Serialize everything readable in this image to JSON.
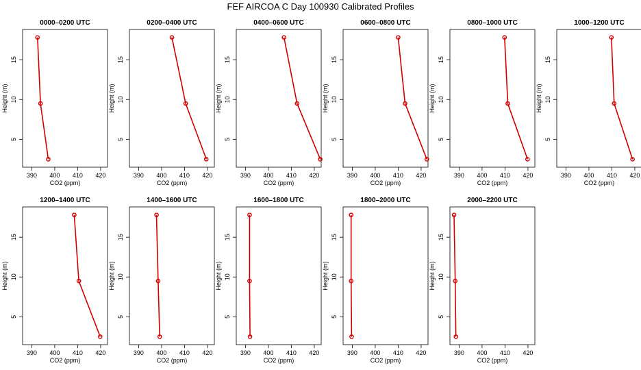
{
  "figure": {
    "title": "FEF AIRCOA C  Day 100930  Calibrated Profiles"
  },
  "chart_data": [
    {
      "type": "line",
      "title": "0000–0200 UTC",
      "xlabel": "CO2 (ppm)",
      "ylabel": "Height (m)",
      "xlim": [
        386,
        423
      ],
      "ylim": [
        1.5,
        18.8
      ],
      "xticks": [
        390,
        400,
        410,
        420
      ],
      "yticks": [
        5,
        10,
        15
      ],
      "series": [
        {
          "x": [
            392.5,
            393.8,
            397.2
          ],
          "y": [
            17.8,
            9.5,
            2.5
          ]
        }
      ]
    },
    {
      "type": "line",
      "title": "0200–0400 UTC",
      "xlabel": "CO2 (ppm)",
      "ylabel": "Height (m)",
      "xlim": [
        386,
        423
      ],
      "ylim": [
        1.5,
        18.8
      ],
      "xticks": [
        390,
        400,
        410,
        420
      ],
      "yticks": [
        5,
        10,
        15
      ],
      "series": [
        {
          "x": [
            404.5,
            410.5,
            419.5
          ],
          "y": [
            17.8,
            9.5,
            2.5
          ]
        }
      ]
    },
    {
      "type": "line",
      "title": "0400–0600 UTC",
      "xlabel": "CO2 (ppm)",
      "ylabel": "Height (m)",
      "xlim": [
        386,
        423
      ],
      "ylim": [
        1.5,
        18.8
      ],
      "xticks": [
        390,
        400,
        410,
        420
      ],
      "yticks": [
        5,
        10,
        15
      ],
      "series": [
        {
          "x": [
            406.8,
            412.5,
            422.6
          ],
          "y": [
            17.8,
            9.5,
            2.5
          ]
        }
      ]
    },
    {
      "type": "line",
      "title": "0600–0800 UTC",
      "xlabel": "CO2 (ppm)",
      "ylabel": "Height (m)",
      "xlim": [
        386,
        423
      ],
      "ylim": [
        1.5,
        18.8
      ],
      "xticks": [
        390,
        400,
        410,
        420
      ],
      "yticks": [
        5,
        10,
        15
      ],
      "series": [
        {
          "x": [
            410.0,
            413.0,
            422.5
          ],
          "y": [
            17.8,
            9.5,
            2.5
          ]
        }
      ]
    },
    {
      "type": "line",
      "title": "0800–1000 UTC",
      "xlabel": "CO2 (ppm)",
      "ylabel": "Height (m)",
      "xlim": [
        386,
        423
      ],
      "ylim": [
        1.5,
        18.8
      ],
      "xticks": [
        390,
        400,
        410,
        420
      ],
      "yticks": [
        5,
        10,
        15
      ],
      "series": [
        {
          "x": [
            409.8,
            411.2,
            419.8
          ],
          "y": [
            17.8,
            9.5,
            2.5
          ]
        }
      ]
    },
    {
      "type": "line",
      "title": "1000–1200 UTC",
      "xlabel": "CO2 (ppm)",
      "ylabel": "Height (m)",
      "xlim": [
        386,
        423
      ],
      "ylim": [
        1.5,
        18.8
      ],
      "xticks": [
        390,
        400,
        410,
        420
      ],
      "yticks": [
        5,
        10,
        15
      ],
      "series": [
        {
          "x": [
            409.8,
            411.0,
            419.0
          ],
          "y": [
            17.8,
            9.5,
            2.5
          ]
        }
      ]
    },
    {
      "type": "line",
      "title": "1200–1400 UTC",
      "xlabel": "CO2 (ppm)",
      "ylabel": "Height (m)",
      "xlim": [
        386,
        423
      ],
      "ylim": [
        1.5,
        18.8
      ],
      "xticks": [
        390,
        400,
        410,
        420
      ],
      "yticks": [
        5,
        10,
        15
      ],
      "series": [
        {
          "x": [
            408.5,
            410.5,
            419.8
          ],
          "y": [
            17.8,
            9.5,
            2.5
          ]
        }
      ]
    },
    {
      "type": "line",
      "title": "1400–1600 UTC",
      "xlabel": "CO2 (ppm)",
      "ylabel": "Height (m)",
      "xlim": [
        386,
        423
      ],
      "ylim": [
        1.5,
        18.8
      ],
      "xticks": [
        390,
        400,
        410,
        420
      ],
      "yticks": [
        5,
        10,
        15
      ],
      "series": [
        {
          "x": [
            397.8,
            398.5,
            399.2
          ],
          "y": [
            17.8,
            9.5,
            2.5
          ]
        }
      ]
    },
    {
      "type": "line",
      "title": "1600–1800 UTC",
      "xlabel": "CO2 (ppm)",
      "ylabel": "Height (m)",
      "xlim": [
        386,
        423
      ],
      "ylim": [
        1.5,
        18.8
      ],
      "xticks": [
        390,
        400,
        410,
        420
      ],
      "yticks": [
        5,
        10,
        15
      ],
      "series": [
        {
          "x": [
            391.8,
            391.8,
            392.0
          ],
          "y": [
            17.8,
            9.5,
            2.5
          ]
        }
      ]
    },
    {
      "type": "line",
      "title": "1800–2000 UTC",
      "xlabel": "CO2 (ppm)",
      "ylabel": "Height (m)",
      "xlim": [
        386,
        423
      ],
      "ylim": [
        1.5,
        18.8
      ],
      "xticks": [
        390,
        400,
        410,
        420
      ],
      "yticks": [
        5,
        10,
        15
      ],
      "series": [
        {
          "x": [
            389.5,
            389.5,
            389.7
          ],
          "y": [
            17.8,
            9.5,
            2.5
          ]
        }
      ]
    },
    {
      "type": "line",
      "title": "2000–2200 UTC",
      "xlabel": "CO2 (ppm)",
      "ylabel": "Height (m)",
      "xlim": [
        386,
        423
      ],
      "ylim": [
        1.5,
        18.8
      ],
      "xticks": [
        390,
        400,
        410,
        420
      ],
      "yticks": [
        5,
        10,
        15
      ],
      "series": [
        {
          "x": [
            387.8,
            388.3,
            388.6
          ],
          "y": [
            17.8,
            9.5,
            2.5
          ]
        }
      ]
    }
  ],
  "colors": {
    "series": "#d00000",
    "axes": "#000000"
  }
}
